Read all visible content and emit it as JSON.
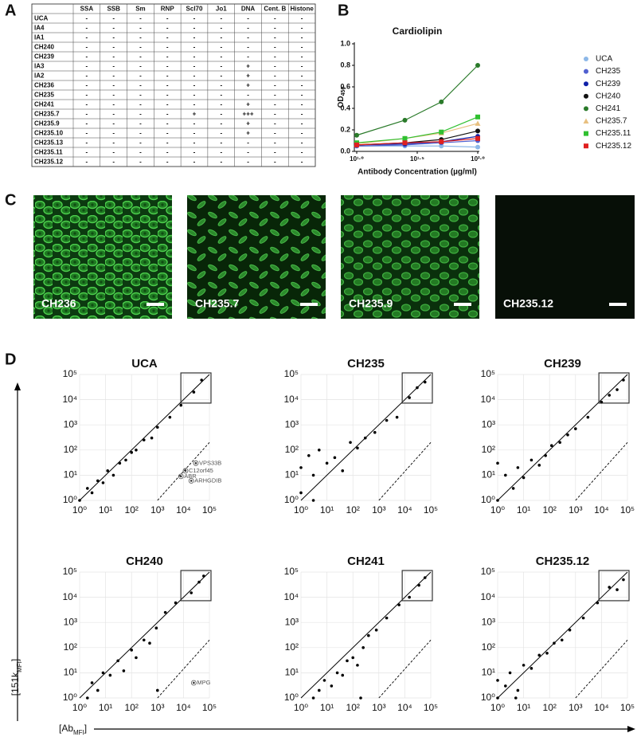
{
  "panel_labels": [
    "A",
    "B",
    "C",
    "D"
  ],
  "table": {
    "columns": [
      "SSA",
      "SSB",
      "Sm",
      "RNP",
      "Scl70",
      "Jo1",
      "DNA",
      "Cent. B",
      "Histone"
    ],
    "rows": [
      {
        "name": "UCA",
        "cells": [
          "-",
          "-",
          "-",
          "-",
          "-",
          "-",
          "-",
          "-",
          "-"
        ]
      },
      {
        "name": "IA4",
        "cells": [
          "-",
          "-",
          "-",
          "-",
          "-",
          "-",
          "-",
          "-",
          "-"
        ]
      },
      {
        "name": "IA1",
        "cells": [
          "-",
          "-",
          "-",
          "-",
          "-",
          "-",
          "-",
          "-",
          "-"
        ]
      },
      {
        "name": "CH240",
        "cells": [
          "-",
          "-",
          "-",
          "-",
          "-",
          "-",
          "-",
          "-",
          "-"
        ]
      },
      {
        "name": "CH239",
        "cells": [
          "-",
          "-",
          "-",
          "-",
          "-",
          "-",
          "-",
          "-",
          "-"
        ]
      },
      {
        "name": "IA3",
        "cells": [
          "-",
          "-",
          "-",
          "-",
          "-",
          "-",
          "+",
          "-",
          "-"
        ]
      },
      {
        "name": "IA2",
        "cells": [
          "-",
          "-",
          "-",
          "-",
          "-",
          "-",
          "+",
          "-",
          "-"
        ]
      },
      {
        "name": "CH236",
        "cells": [
          "-",
          "-",
          "-",
          "-",
          "-",
          "-",
          "+",
          "-",
          "-"
        ]
      },
      {
        "name": "CH235",
        "cells": [
          "-",
          "-",
          "-",
          "-",
          "-",
          "-",
          "-",
          "-",
          "-"
        ]
      },
      {
        "name": "CH241",
        "cells": [
          "-",
          "-",
          "-",
          "-",
          "-",
          "-",
          "+",
          "-",
          "-"
        ]
      },
      {
        "name": "CH235.7",
        "cells": [
          "-",
          "-",
          "-",
          "-",
          "+",
          "-",
          "+++",
          "-",
          "-"
        ]
      },
      {
        "name": "CH235.9",
        "cells": [
          "-",
          "-",
          "-",
          "-",
          "-",
          "-",
          "+",
          "-",
          "-"
        ]
      },
      {
        "name": "CH235.10",
        "cells": [
          "-",
          "-",
          "-",
          "-",
          "-",
          "-",
          "+",
          "-",
          "-"
        ]
      },
      {
        "name": "CH235.13",
        "cells": [
          "-",
          "-",
          "-",
          "-",
          "-",
          "-",
          "-",
          "-",
          "-"
        ]
      },
      {
        "name": "CH235.11",
        "cells": [
          "-",
          "-",
          "-",
          "-",
          "-",
          "-",
          "-",
          "-",
          "-"
        ]
      },
      {
        "name": "CH235.12",
        "cells": [
          "-",
          "-",
          "-",
          "-",
          "-",
          "-",
          "-",
          "-",
          "-"
        ]
      }
    ]
  },
  "images": [
    {
      "label": "CH236"
    },
    {
      "label": "CH235.7"
    },
    {
      "label": "CH235.9"
    },
    {
      "label": "CH235.12"
    }
  ],
  "panel_d_axes": {
    "y": {
      "text": "[151k",
      "sub": "MFI",
      "end": "]"
    },
    "x": {
      "text": "[Ab",
      "sub": "MFI",
      "end": "]"
    }
  },
  "chart_data": [
    {
      "type": "line",
      "title": "Cardiolipin",
      "ylabel": "OD",
      "ylabel_sub": "450",
      "xlabel": "Antibody Concentration (µg/ml)",
      "xscale": "log",
      "x": [
        10,
        25,
        50,
        100
      ],
      "xlim": [
        10,
        100
      ],
      "xticks": [
        {
          "value": 10,
          "label": "10¹·⁰"
        },
        {
          "value": 31.62,
          "label": "10¹·⁵"
        },
        {
          "value": 100,
          "label": "10²·⁰"
        }
      ],
      "ylim": [
        0,
        1.0
      ],
      "yticks": [
        {
          "value": 0,
          "label": "0.0"
        },
        0.2,
        0.4,
        0.6,
        0.8,
        {
          "value": 1.0,
          "label": "1.0"
        }
      ],
      "series": [
        {
          "name": "UCA",
          "color": "#8db8e8",
          "marker": "circle",
          "values": [
            0.05,
            0.05,
            0.05,
            0.04
          ]
        },
        {
          "name": "CH235",
          "color": "#5060d0",
          "marker": "circle",
          "values": [
            0.05,
            0.06,
            0.08,
            0.1
          ]
        },
        {
          "name": "CH239",
          "color": "#1020a8",
          "marker": "circle",
          "values": [
            0.06,
            0.07,
            0.09,
            0.14
          ]
        },
        {
          "name": "CH240",
          "color": "#111111",
          "marker": "circle",
          "values": [
            0.06,
            0.08,
            0.11,
            0.19
          ]
        },
        {
          "name": "CH241",
          "color": "#2a7a2a",
          "marker": "circle",
          "values": [
            0.15,
            0.29,
            0.46,
            0.8
          ]
        },
        {
          "name": "CH235.7",
          "color": "#e8c080",
          "marker": "triangle",
          "values": [
            0.07,
            0.12,
            0.17,
            0.26
          ]
        },
        {
          "name": "CH235.11",
          "color": "#30c030",
          "marker": "square",
          "values": [
            0.08,
            0.12,
            0.18,
            0.32
          ]
        },
        {
          "name": "CH235.12",
          "color": "#e02020",
          "marker": "square",
          "values": [
            0.06,
            0.08,
            0.09,
            0.12
          ]
        }
      ]
    },
    {
      "type": "scatter",
      "title": "UCA",
      "xscale": "log",
      "yscale": "log",
      "xlim": [
        1,
        100000
      ],
      "ylim": [
        1,
        100000
      ],
      "xticks": [
        {
          "value": 1,
          "label": "10⁰"
        },
        {
          "value": 10,
          "label": "10¹"
        },
        {
          "value": 100,
          "label": "10²"
        },
        {
          "value": 1000,
          "label": "10³"
        },
        {
          "value": 10000,
          "label": "10⁴"
        },
        {
          "value": 100000,
          "label": "10⁵"
        }
      ],
      "yticks": [
        {
          "value": 1,
          "label": "10⁰"
        },
        {
          "value": 10,
          "label": "10¹"
        },
        {
          "value": 100,
          "label": "10²"
        },
        {
          "value": 1000,
          "label": "10³"
        },
        {
          "value": 10000,
          "label": "10⁴"
        },
        {
          "value": 100000,
          "label": "10⁵"
        }
      ],
      "x": [
        1,
        2,
        3,
        5,
        8,
        12,
        20,
        35,
        60,
        100,
        150,
        300,
        600,
        1000,
        3000,
        8000,
        25000,
        50000
      ],
      "y": [
        1,
        3,
        2,
        6,
        5,
        15,
        10,
        30,
        40,
        80,
        100,
        250,
        300,
        800,
        2000,
        6000,
        20000,
        60000
      ],
      "annotations": [
        {
          "text": "VPS33B",
          "x": 30000,
          "y": 30
        },
        {
          "text": "C12orf45",
          "x": 12000,
          "y": 15
        },
        {
          "text": "ABR",
          "x": 8000,
          "y": 9
        },
        {
          "text": "ARHGDIB",
          "x": 20000,
          "y": 6
        }
      ]
    },
    {
      "type": "scatter",
      "title": "CH235",
      "xscale": "log",
      "yscale": "log",
      "xlim": [
        1,
        100000
      ],
      "ylim": [
        1,
        100000
      ],
      "xticks": [
        {
          "value": 1,
          "label": "10⁰"
        },
        {
          "value": 10,
          "label": "10¹"
        },
        {
          "value": 100,
          "label": "10²"
        },
        {
          "value": 1000,
          "label": "10³"
        },
        {
          "value": 10000,
          "label": "10⁴"
        },
        {
          "value": 100000,
          "label": "10⁵"
        }
      ],
      "yticks": [
        {
          "value": 1,
          "label": "10⁰"
        },
        {
          "value": 10,
          "label": "10¹"
        },
        {
          "value": 100,
          "label": "10²"
        },
        {
          "value": 1000,
          "label": "10³"
        },
        {
          "value": 10000,
          "label": "10⁴"
        },
        {
          "value": 100000,
          "label": "10⁵"
        }
      ],
      "x": [
        1,
        1,
        2,
        3,
        5,
        10,
        20,
        40,
        80,
        150,
        300,
        700,
        2000,
        5000,
        15000,
        30000,
        60000,
        3
      ],
      "y": [
        2,
        20,
        60,
        10,
        100,
        30,
        50,
        15,
        200,
        120,
        300,
        500,
        1500,
        2000,
        12000,
        30000,
        50000,
        1
      ]
    },
    {
      "type": "scatter",
      "title": "CH239",
      "xscale": "log",
      "yscale": "log",
      "xlim": [
        1,
        100000
      ],
      "ylim": [
        1,
        100000
      ],
      "xticks": [
        {
          "value": 1,
          "label": "10⁰"
        },
        {
          "value": 10,
          "label": "10¹"
        },
        {
          "value": 100,
          "label": "10²"
        },
        {
          "value": 1000,
          "label": "10³"
        },
        {
          "value": 10000,
          "label": "10⁴"
        },
        {
          "value": 100000,
          "label": "10⁵"
        }
      ],
      "yticks": [
        {
          "value": 1,
          "label": "10⁰"
        },
        {
          "value": 10,
          "label": "10¹"
        },
        {
          "value": 100,
          "label": "10²"
        },
        {
          "value": 1000,
          "label": "10³"
        },
        {
          "value": 10000,
          "label": "10⁴"
        },
        {
          "value": 100000,
          "label": "10⁵"
        }
      ],
      "x": [
        1,
        2,
        4,
        6,
        10,
        20,
        40,
        70,
        120,
        250,
        500,
        1000,
        3000,
        10000,
        20000,
        40000,
        70000,
        1
      ],
      "y": [
        1,
        10,
        3,
        20,
        8,
        40,
        25,
        60,
        150,
        200,
        400,
        700,
        2000,
        8000,
        15000,
        25000,
        60000,
        30
      ]
    },
    {
      "type": "scatter",
      "title": "CH240",
      "xscale": "log",
      "yscale": "log",
      "xlim": [
        1,
        100000
      ],
      "ylim": [
        1,
        100000
      ],
      "xticks": [
        {
          "value": 1,
          "label": "10⁰"
        },
        {
          "value": 10,
          "label": "10¹"
        },
        {
          "value": 100,
          "label": "10²"
        },
        {
          "value": 1000,
          "label": "10³"
        },
        {
          "value": 10000,
          "label": "10⁴"
        },
        {
          "value": 100000,
          "label": "10⁵"
        }
      ],
      "yticks": [
        {
          "value": 1,
          "label": "10⁰"
        },
        {
          "value": 10,
          "label": "10¹"
        },
        {
          "value": 100,
          "label": "10²"
        },
        {
          "value": 1000,
          "label": "10³"
        },
        {
          "value": 10000,
          "label": "10⁴"
        },
        {
          "value": 100000,
          "label": "10⁵"
        }
      ],
      "x": [
        2,
        3,
        5,
        8,
        15,
        30,
        50,
        100,
        150,
        300,
        500,
        900,
        2000,
        5000,
        20000,
        40000,
        60000,
        1000
      ],
      "y": [
        1,
        4,
        2,
        10,
        8,
        30,
        12,
        80,
        40,
        200,
        150,
        600,
        2500,
        6000,
        15000,
        40000,
        70000,
        2
      ],
      "annotations": [
        {
          "text": "MPG",
          "x": 25000,
          "y": 4
        }
      ]
    },
    {
      "type": "scatter",
      "title": "CH241",
      "xscale": "log",
      "yscale": "log",
      "xlim": [
        1,
        100000
      ],
      "ylim": [
        1,
        100000
      ],
      "xticks": [
        {
          "value": 1,
          "label": "10⁰"
        },
        {
          "value": 10,
          "label": "10¹"
        },
        {
          "value": 100,
          "label": "10²"
        },
        {
          "value": 1000,
          "label": "10³"
        },
        {
          "value": 10000,
          "label": "10⁴"
        },
        {
          "value": 100000,
          "label": "10⁵"
        }
      ],
      "yticks": [
        {
          "value": 1,
          "label": "10⁰"
        },
        {
          "value": 10,
          "label": "10¹"
        },
        {
          "value": 100,
          "label": "10²"
        },
        {
          "value": 1000,
          "label": "10³"
        },
        {
          "value": 10000,
          "label": "10⁴"
        },
        {
          "value": 100000,
          "label": "10⁵"
        }
      ],
      "x": [
        3,
        5,
        8,
        15,
        25,
        40,
        60,
        100,
        150,
        250,
        400,
        800,
        2000,
        6000,
        15000,
        35000,
        60000,
        200
      ],
      "y": [
        1,
        2,
        5,
        3,
        10,
        8,
        30,
        40,
        20,
        100,
        300,
        500,
        1500,
        5000,
        10000,
        30000,
        60000,
        1
      ]
    },
    {
      "type": "scatter",
      "title": "CH235.12",
      "xscale": "log",
      "yscale": "log",
      "xlim": [
        1,
        100000
      ],
      "ylim": [
        1,
        100000
      ],
      "xticks": [
        {
          "value": 1,
          "label": "10⁰"
        },
        {
          "value": 10,
          "label": "10¹"
        },
        {
          "value": 100,
          "label": "10²"
        },
        {
          "value": 1000,
          "label": "10³"
        },
        {
          "value": 10000,
          "label": "10⁴"
        },
        {
          "value": 100000,
          "label": "10⁵"
        }
      ],
      "yticks": [
        {
          "value": 1,
          "label": "10⁰"
        },
        {
          "value": 10,
          "label": "10¹"
        },
        {
          "value": 100,
          "label": "10²"
        },
        {
          "value": 1000,
          "label": "10³"
        },
        {
          "value": 10000,
          "label": "10⁴"
        },
        {
          "value": 100000,
          "label": "10⁵"
        }
      ],
      "x": [
        1,
        1,
        2,
        3,
        6,
        10,
        20,
        40,
        80,
        150,
        300,
        600,
        2000,
        7000,
        20000,
        40000,
        70000,
        5
      ],
      "y": [
        1,
        5,
        3,
        10,
        2,
        20,
        15,
        50,
        60,
        150,
        200,
        500,
        1500,
        6000,
        25000,
        20000,
        50000,
        1
      ]
    }
  ]
}
